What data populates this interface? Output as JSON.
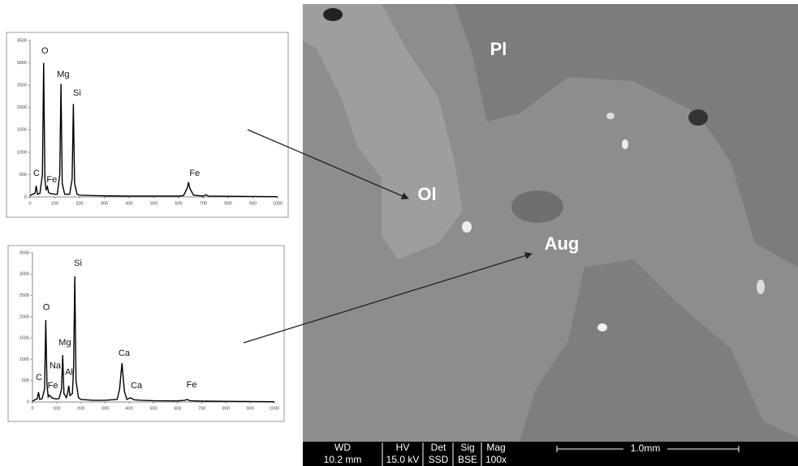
{
  "chart_data": [
    {
      "type": "line",
      "x": [
        0,
        10,
        20,
        25,
        30,
        40,
        50,
        55,
        60,
        65,
        70,
        75,
        80,
        90,
        100,
        110,
        120,
        125,
        130,
        140,
        160,
        170,
        175,
        180,
        190,
        200,
        250,
        300,
        400,
        500,
        600,
        620,
        635,
        640,
        645,
        660,
        700,
        710,
        720,
        800,
        900,
        1000
      ],
      "series": [
        {
          "color": "#000000",
          "values": [
            30,
            60,
            80,
            250,
            60,
            80,
            500,
            3000,
            400,
            150,
            230,
            100,
            80,
            70,
            60,
            60,
            500,
            2530,
            300,
            60,
            60,
            400,
            2080,
            300,
            60,
            40,
            30,
            25,
            20,
            20,
            20,
            30,
            200,
            330,
            200,
            40,
            20,
            50,
            20,
            15,
            10,
            5
          ]
        }
      ],
      "xlim": [
        0,
        1000
      ],
      "xticks": [
        0,
        100,
        200,
        300,
        400,
        500,
        600,
        700,
        800,
        900,
        1000
      ],
      "ylim": [
        0,
        3500
      ],
      "yticks": [
        0,
        500,
        1000,
        1500,
        2000,
        2500,
        3000,
        3500
      ],
      "annotations": [
        {
          "text": "C",
          "x": 26,
          "y": 525
        },
        {
          "text": "O",
          "x": 60,
          "y": 3260
        },
        {
          "text": "Fe",
          "x": 88,
          "y": 380
        },
        {
          "text": "Mg",
          "x": 134,
          "y": 2740
        },
        {
          "text": "Si",
          "x": 190,
          "y": 2320
        },
        {
          "text": "Fe",
          "x": 665,
          "y": 525
        }
      ]
    },
    {
      "type": "line",
      "x": [
        0,
        10,
        20,
        25,
        30,
        40,
        50,
        55,
        60,
        65,
        70,
        80,
        90,
        100,
        110,
        120,
        125,
        130,
        140,
        145,
        150,
        155,
        165,
        170,
        175,
        180,
        190,
        200,
        250,
        300,
        350,
        360,
        370,
        380,
        390,
        405,
        420,
        450,
        500,
        600,
        630,
        640,
        650,
        700,
        800,
        900,
        1000
      ],
      "series": [
        {
          "color": "#000000",
          "values": [
            20,
            50,
            80,
            230,
            60,
            80,
            300,
            1920,
            400,
            120,
            160,
            100,
            80,
            70,
            80,
            300,
            1100,
            200,
            100,
            200,
            380,
            150,
            200,
            800,
            2950,
            500,
            100,
            60,
            40,
            40,
            60,
            300,
            910,
            250,
            60,
            100,
            50,
            40,
            30,
            25,
            40,
            60,
            30,
            20,
            15,
            10,
            5
          ]
        }
      ],
      "xlim": [
        0,
        1000
      ],
      "xticks": [
        0,
        100,
        200,
        300,
        400,
        500,
        600,
        700,
        800,
        900,
        1000
      ],
      "ylim": [
        0,
        3500
      ],
      "yticks": [
        0,
        500,
        1000,
        1500,
        2000,
        2500,
        3000,
        3500
      ],
      "annotations": [
        {
          "text": "C",
          "x": 27,
          "y": 570
        },
        {
          "text": "O",
          "x": 57,
          "y": 2210
        },
        {
          "text": "Na",
          "x": 94,
          "y": 840
        },
        {
          "text": "Fe",
          "x": 84,
          "y": 380
        },
        {
          "text": "Mg",
          "x": 134,
          "y": 1390
        },
        {
          "text": "Al",
          "x": 151,
          "y": 690
        },
        {
          "text": "Si",
          "x": 188,
          "y": 3250
        },
        {
          "text": "Ca",
          "x": 379,
          "y": 1140
        },
        {
          "text": "Ca",
          "x": 430,
          "y": 380
        },
        {
          "text": "Fe",
          "x": 658,
          "y": 400
        }
      ]
    }
  ],
  "sem_image": {
    "labels": [
      "Pl",
      "Ol",
      "Aug"
    ],
    "info_headers": [
      "WD",
      "HV",
      "Det",
      "Sig",
      "Mag"
    ],
    "info_values": [
      "10.2 mm",
      "15.0 kV",
      "SSD",
      "BSE",
      "100x"
    ],
    "scale_bar": "1.0mm"
  }
}
